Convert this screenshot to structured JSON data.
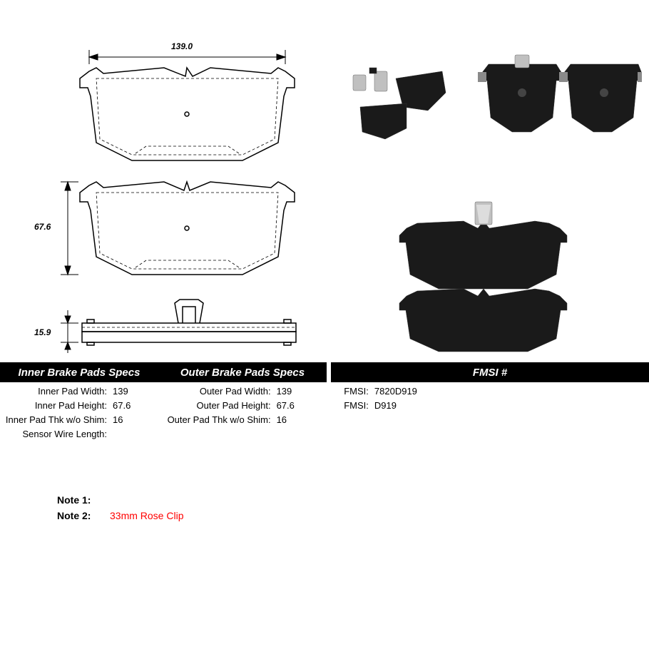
{
  "dimensions": {
    "width_label": "139.0",
    "height_label": "67.6",
    "thickness_label": "15.9"
  },
  "headers": {
    "inner": "Inner Brake Pads Specs",
    "outer": "Outer Brake Pads Specs",
    "fmsi": "FMSI #"
  },
  "inner_specs": [
    {
      "label": "Inner Pad Width:",
      "value": "139"
    },
    {
      "label": "Inner Pad Height:",
      "value": "67.6"
    },
    {
      "label": "Inner Pad Thk w/o Shim:",
      "value": "16"
    },
    {
      "label": "Sensor Wire Length:",
      "value": ""
    }
  ],
  "outer_specs": [
    {
      "label": "Outer Pad Width:",
      "value": "139"
    },
    {
      "label": "Outer Pad Height:",
      "value": "67.6"
    },
    {
      "label": "Outer Pad Thk w/o Shim:",
      "value": "16"
    }
  ],
  "fmsi_specs": [
    {
      "label": "FMSI:",
      "value": "7820D919"
    },
    {
      "label": "FMSI:",
      "value": "D919"
    }
  ],
  "notes": {
    "note1_label": "Note 1:",
    "note1_text": "",
    "note2_label": "Note 2:",
    "note2_text": "33mm Rose Clip"
  },
  "colors": {
    "header_bg": "#000000",
    "header_text": "#ffffff",
    "note_highlight": "#ff0000",
    "background": "#ffffff",
    "pad_dark": "#1a1a1a",
    "pad_gray": "#8a8a8a"
  },
  "layout": {
    "header_inner_width": 222,
    "header_outer_width": 236,
    "header_fmsi_width": 446,
    "spec_label_width_inner": 150,
    "spec_label_width_outer": 160,
    "spec_label_width_fmsi": 48
  }
}
